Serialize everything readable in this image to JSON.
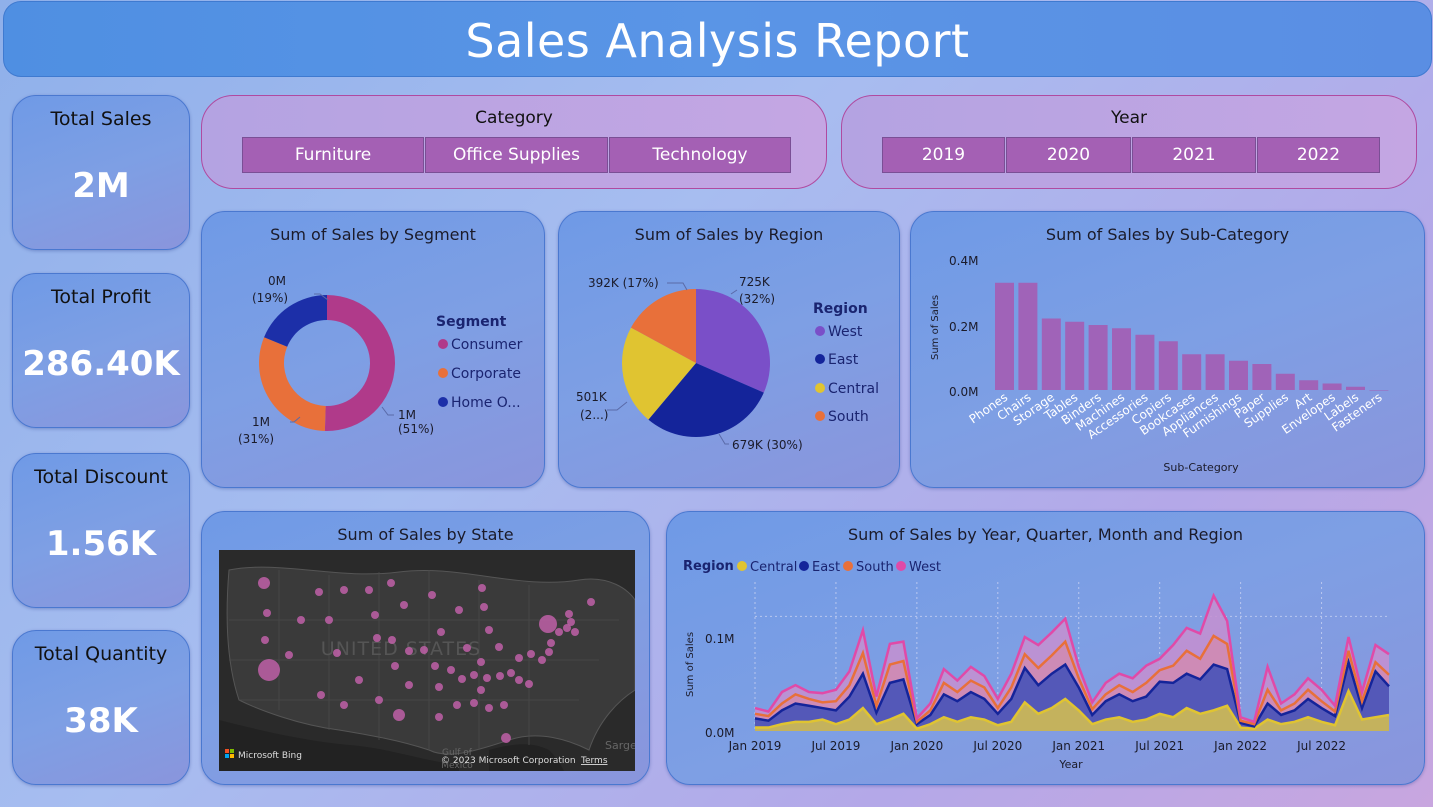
{
  "header": {
    "title": "Sales Analysis Report"
  },
  "kpis": [
    {
      "label": "Total Sales",
      "value": "2M"
    },
    {
      "label": "Total Profit",
      "value": "286.40K"
    },
    {
      "label": "Total Discount",
      "value": "1.56K"
    },
    {
      "label": "Total Quantity",
      "value": "38K"
    }
  ],
  "category_slicer": {
    "title": "Category",
    "options": [
      "Furniture",
      "Office Supplies",
      "Technology"
    ]
  },
  "year_slicer": {
    "title": "Year",
    "options": [
      "2019",
      "2020",
      "2021",
      "2022"
    ]
  },
  "segment_chart": {
    "title": "Sum of Sales by Segment",
    "legend_title": "Segment",
    "legend": [
      "Consumer",
      "Corporate",
      "Home O..."
    ],
    "labels": [
      {
        "value": "1M",
        "pct": "(51%)"
      },
      {
        "value": "1M",
        "pct": "(31%)"
      },
      {
        "value": "0M",
        "pct": "(19%)"
      }
    ]
  },
  "region_chart": {
    "title": "Sum of Sales by Region",
    "legend_title": "Region",
    "legend": [
      "West",
      "East",
      "Central",
      "South"
    ],
    "labels": [
      {
        "value": "725K",
        "pct": "(32%)"
      },
      {
        "value": "679K (30%)",
        "pct": ""
      },
      {
        "value": "501K",
        "pct": "(2...)"
      },
      {
        "value": "392K (17%)",
        "pct": ""
      }
    ]
  },
  "subcat_chart": {
    "title": "Sum of Sales by Sub-Category",
    "xlabel": "Sub-Category",
    "ylabel": "Sum of Sales",
    "yticks": [
      "0.4M",
      "0.2M",
      "0.0M"
    ]
  },
  "map": {
    "title": "Sum of Sales by State",
    "country_label": "UNITED STATES",
    "gulf_label": "Gulf of",
    "mexico_label": "Mexico",
    "edge_label": "Sarge",
    "bing_label": "Microsoft Bing",
    "copyright": "© 2023 Microsoft Corporation",
    "terms": "Terms"
  },
  "time_chart": {
    "title": "Sum of Sales by Year, Quarter, Month and Region",
    "legend_title": "Region",
    "legend": [
      "Central",
      "East",
      "South",
      "West"
    ],
    "ylabel": "Sum of Sales",
    "xlabel": "Year",
    "yticks": [
      "0.1M",
      "0.0M"
    ],
    "xticks": [
      "Jan 2019",
      "Jul 2019",
      "Jan 2020",
      "Jul 2020",
      "Jan 2021",
      "Jul 2021",
      "Jan 2022",
      "Jul 2022"
    ]
  },
  "colors": {
    "consumer": "#b03a8a",
    "corporate": "#e8703a",
    "home_office": "#1c2fa8",
    "west": "#7a4fc8",
    "east": "#14249a",
    "central": "#e0c431",
    "south": "#e8703a",
    "pink": "#e04aa8",
    "bar": "#a063b8"
  },
  "chart_data": [
    {
      "type": "pie",
      "title": "Sum of Sales by Segment",
      "categories": [
        "Consumer",
        "Corporate",
        "Home Office"
      ],
      "values": [
        51,
        31,
        19
      ],
      "unit": "percent",
      "colors": [
        "#b03a8a",
        "#e8703a",
        "#1c2fa8"
      ]
    },
    {
      "type": "pie",
      "title": "Sum of Sales by Region",
      "categories": [
        "West",
        "East",
        "Central",
        "South"
      ],
      "values": [
        725,
        679,
        501,
        392
      ],
      "unit": "K",
      "colors": [
        "#7a4fc8",
        "#14249a",
        "#e0c431",
        "#e8703a"
      ]
    },
    {
      "type": "bar",
      "title": "Sum of Sales by Sub-Category",
      "xlabel": "Sub-Category",
      "ylabel": "Sum of Sales",
      "ylim": [
        0,
        0.4
      ],
      "categories": [
        "Phones",
        "Chairs",
        "Storage",
        "Tables",
        "Binders",
        "Machines",
        "Accessories",
        "Copiers",
        "Bookcases",
        "Appliances",
        "Furnishings",
        "Paper",
        "Supplies",
        "Art",
        "Envelopes",
        "Labels",
        "Fasteners"
      ],
      "values": [
        0.33,
        0.33,
        0.22,
        0.21,
        0.2,
        0.19,
        0.17,
        0.15,
        0.11,
        0.11,
        0.09,
        0.08,
        0.05,
        0.03,
        0.02,
        0.01,
        0.0
      ]
    },
    {
      "type": "area",
      "title": "Sum of Sales by Year, Quarter, Month and Region",
      "xlabel": "Year",
      "ylabel": "Sum of Sales",
      "ylim": [
        0,
        0.13
      ],
      "x": [
        "Jan 2019",
        "Feb 2019",
        "Mar 2019",
        "Apr 2019",
        "May 2019",
        "Jun 2019",
        "Jul 2019",
        "Aug 2019",
        "Sep 2019",
        "Oct 2019",
        "Nov 2019",
        "Dec 2019",
        "Jan 2020",
        "Feb 2020",
        "Mar 2020",
        "Apr 2020",
        "May 2020",
        "Jun 2020",
        "Jul 2020",
        "Aug 2020",
        "Sep 2020",
        "Oct 2020",
        "Nov 2020",
        "Dec 2020",
        "Jan 2021",
        "Feb 2021",
        "Mar 2021",
        "Apr 2021",
        "May 2021",
        "Jun 2021",
        "Jul 2021",
        "Aug 2021",
        "Sep 2021",
        "Oct 2021",
        "Nov 2021",
        "Dec 2021",
        "Jan 2022",
        "Feb 2022",
        "Mar 2022",
        "Apr 2022",
        "May 2022",
        "Jun 2022",
        "Jul 2022",
        "Aug 2022",
        "Sep 2022",
        "Oct 2022",
        "Nov 2022",
        "Dec 2022"
      ],
      "series": [
        {
          "name": "Central",
          "values": [
            0.003,
            0.003,
            0.006,
            0.008,
            0.008,
            0.01,
            0.006,
            0.01,
            0.02,
            0.006,
            0.01,
            0.015,
            0.002,
            0.006,
            0.012,
            0.008,
            0.012,
            0.01,
            0.005,
            0.008,
            0.025,
            0.015,
            0.02,
            0.028,
            0.018,
            0.006,
            0.01,
            0.012,
            0.008,
            0.01,
            0.015,
            0.012,
            0.02,
            0.015,
            0.018,
            0.022,
            0.003,
            0.002,
            0.01,
            0.006,
            0.008,
            0.012,
            0.008,
            0.005,
            0.035,
            0.01,
            0.012,
            0.014
          ]
        },
        {
          "name": "East",
          "values": [
            0.008,
            0.006,
            0.012,
            0.016,
            0.014,
            0.01,
            0.012,
            0.02,
            0.03,
            0.01,
            0.032,
            0.03,
            0.004,
            0.008,
            0.02,
            0.018,
            0.022,
            0.018,
            0.01,
            0.02,
            0.03,
            0.025,
            0.03,
            0.03,
            0.02,
            0.008,
            0.016,
            0.02,
            0.018,
            0.02,
            0.028,
            0.03,
            0.03,
            0.03,
            0.04,
            0.032,
            0.004,
            0.002,
            0.014,
            0.008,
            0.01,
            0.016,
            0.012,
            0.008,
            0.025,
            0.01,
            0.04,
            0.025
          ]
        },
        {
          "name": "South",
          "values": [
            0.004,
            0.004,
            0.006,
            0.008,
            0.006,
            0.005,
            0.008,
            0.01,
            0.018,
            0.006,
            0.016,
            0.016,
            0.002,
            0.004,
            0.01,
            0.008,
            0.01,
            0.01,
            0.005,
            0.01,
            0.012,
            0.015,
            0.016,
            0.02,
            0.008,
            0.005,
            0.006,
            0.008,
            0.008,
            0.012,
            0.01,
            0.015,
            0.02,
            0.018,
            0.025,
            0.022,
            0.002,
            0.002,
            0.012,
            0.004,
            0.006,
            0.008,
            0.006,
            0.004,
            0.01,
            0.006,
            0.008,
            0.01
          ]
        },
        {
          "name": "West",
          "values": [
            0.005,
            0.004,
            0.01,
            0.008,
            0.006,
            0.008,
            0.01,
            0.012,
            0.02,
            0.008,
            0.018,
            0.017,
            0.003,
            0.006,
            0.012,
            0.01,
            0.012,
            0.01,
            0.008,
            0.012,
            0.015,
            0.02,
            0.02,
            0.02,
            0.01,
            0.006,
            0.01,
            0.01,
            0.012,
            0.015,
            0.01,
            0.018,
            0.02,
            0.022,
            0.035,
            0.02,
            0.003,
            0.002,
            0.02,
            0.006,
            0.008,
            0.01,
            0.01,
            0.005,
            0.012,
            0.008,
            0.015,
            0.018
          ]
        }
      ]
    }
  ]
}
